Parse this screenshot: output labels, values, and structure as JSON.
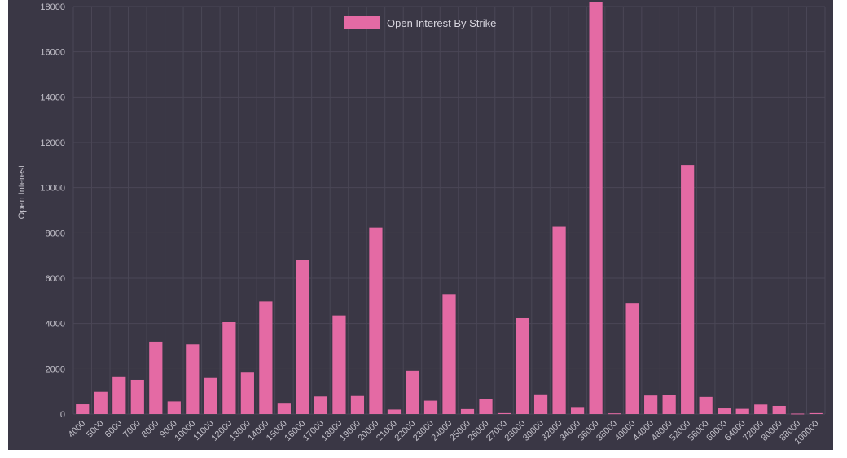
{
  "chart_data": {
    "type": "bar",
    "title": "",
    "xlabel": "",
    "ylabel": "Open Interest",
    "legend": {
      "position": "top-center",
      "entries": [
        "Open Interest By Strike"
      ]
    },
    "series": [
      {
        "name": "Open Interest By Strike",
        "color": "#e46aa4",
        "values": [
          430,
          980,
          1660,
          1510,
          3200,
          560,
          3080,
          1590,
          4060,
          1860,
          4980,
          460,
          6820,
          780,
          4360,
          800,
          8240,
          200,
          1910,
          590,
          5270,
          220,
          680,
          40,
          4240,
          870,
          8280,
          310,
          18200,
          30,
          4880,
          820,
          860,
          10990,
          760,
          250,
          230,
          420,
          360,
          20,
          40
        ]
      }
    ],
    "categories": [
      "4000",
      "5000",
      "6000",
      "7000",
      "8000",
      "9000",
      "10000",
      "11000",
      "12000",
      "13000",
      "14000",
      "15000",
      "16000",
      "17000",
      "18000",
      "19000",
      "20000",
      "21000",
      "22000",
      "23000",
      "24000",
      "25000",
      "26000",
      "27000",
      "28000",
      "30000",
      "32000",
      "34000",
      "36000",
      "38000",
      "40000",
      "44000",
      "48000",
      "52000",
      "56000",
      "60000",
      "64000",
      "72000",
      "80000",
      "88000",
      "100000"
    ],
    "y_ticks": [
      "0",
      "2000",
      "4000",
      "6000",
      "8000",
      "10000",
      "12000",
      "14000",
      "16000",
      "18000"
    ],
    "ylim": [
      0,
      18000
    ],
    "grid": true,
    "colors": {
      "background": "#3a3745",
      "grid": "#4a4756",
      "bar": "#e46aa4",
      "text": "#c3c1ca"
    }
  }
}
